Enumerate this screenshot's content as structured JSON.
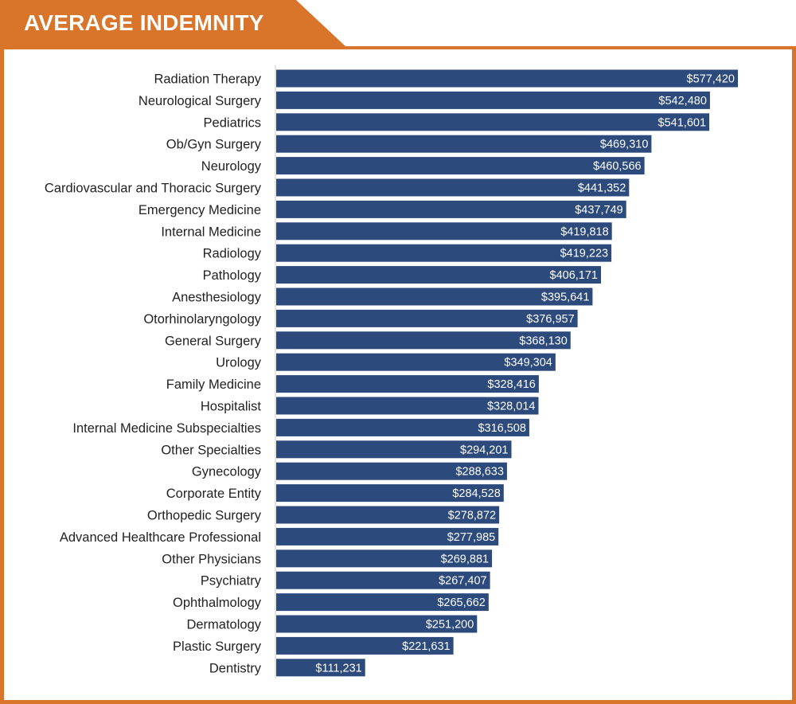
{
  "title": "AVERAGE INDEMNITY",
  "colors": {
    "accent": "#d9742b",
    "bar": "#2c4a7c",
    "bar_label": "#ffffff",
    "text": "#222222",
    "axis": "#c8c8c8"
  },
  "chart_data": {
    "type": "bar",
    "orientation": "horizontal",
    "title": "AVERAGE INDEMNITY",
    "xlabel": "",
    "ylabel": "",
    "grid": false,
    "xlim": [
      0,
      577420
    ],
    "categories": [
      "Radiation Therapy",
      "Neurological Surgery",
      "Pediatrics",
      "Ob/Gyn Surgery",
      "Neurology",
      "Cardiovascular and Thoracic Surgery",
      "Emergency Medicine",
      "Internal Medicine",
      "Radiology",
      "Pathology",
      "Anesthesiology",
      "Otorhinolaryngology",
      "General Surgery",
      "Urology",
      "Family Medicine",
      "Hospitalist",
      "Internal Medicine Subspecialties",
      "Other Specialties",
      "Gynecology",
      "Corporate Entity",
      "Orthopedic Surgery",
      "Advanced Healthcare Professional",
      "Other Physicians",
      "Psychiatry",
      "Ophthalmology",
      "Dermatology",
      "Plastic Surgery",
      "Dentistry"
    ],
    "values": [
      577420,
      542480,
      541601,
      469310,
      460566,
      441352,
      437749,
      419818,
      419223,
      406171,
      395641,
      376957,
      368130,
      349304,
      328416,
      328014,
      316508,
      294201,
      288633,
      284528,
      278872,
      277985,
      269881,
      267407,
      265662,
      251200,
      221631,
      111231
    ],
    "value_labels": [
      "$577,420",
      "$542,480",
      "$541,601",
      "$469,310",
      "$460,566",
      "$441,352",
      "$437,749",
      "$419,818",
      "$419,223",
      "$406,171",
      "$395,641",
      "$376,957",
      "$368,130",
      "$349,304",
      "$328,416",
      "$328,014",
      "$316,508",
      "$294,201",
      "$288,633",
      "$284,528",
      "$278,872",
      "$277,985",
      "$269,881",
      "$267,407",
      "$265,662",
      "$251,200",
      "$221,631",
      "$111,231"
    ]
  }
}
